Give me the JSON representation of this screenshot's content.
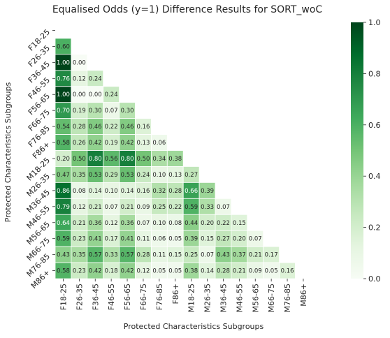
{
  "chart_data": {
    "type": "heatmap",
    "title": "Equalised Odds (y=1) Difference Results for SORT_woC",
    "xlabel": "Protected Characteristics Subgroups",
    "ylabel": "Protected Characteristics Subgroups",
    "categories": [
      "F18-25",
      "F26-35",
      "F36-45",
      "F46-55",
      "F56-65",
      "F66-75",
      "F76-85",
      "F86+",
      "M18-25",
      "M26-35",
      "M36-45",
      "M46-55",
      "M56-65",
      "M66-75",
      "M76-85",
      "M86+"
    ],
    "lower_triangle_values": [
      [
        0.6
      ],
      [
        1.0,
        0.0
      ],
      [
        0.76,
        0.12,
        0.24
      ],
      [
        1.0,
        0.0,
        0.0,
        0.24
      ],
      [
        0.7,
        0.19,
        0.3,
        0.07,
        0.3
      ],
      [
        0.54,
        0.28,
        0.46,
        0.22,
        0.46,
        0.16
      ],
      [
        0.58,
        0.26,
        0.42,
        0.19,
        0.42,
        0.13,
        0.06
      ],
      [
        0.2,
        0.5,
        0.8,
        0.56,
        0.8,
        0.5,
        0.34,
        0.38
      ],
      [
        0.47,
        0.35,
        0.53,
        0.29,
        0.53,
        0.24,
        0.1,
        0.13,
        0.27
      ],
      [
        0.86,
        0.08,
        0.14,
        0.1,
        0.14,
        0.16,
        0.32,
        0.28,
        0.66,
        0.39
      ],
      [
        0.79,
        0.12,
        0.21,
        0.07,
        0.21,
        0.09,
        0.25,
        0.22,
        0.59,
        0.33,
        0.07
      ],
      [
        0.64,
        0.21,
        0.36,
        0.12,
        0.36,
        0.07,
        0.1,
        0.08,
        0.44,
        0.2,
        0.22,
        0.15
      ],
      [
        0.59,
        0.23,
        0.41,
        0.17,
        0.41,
        0.11,
        0.06,
        0.05,
        0.39,
        0.15,
        0.27,
        0.2,
        0.07
      ],
      [
        0.43,
        0.35,
        0.57,
        0.33,
        0.57,
        0.28,
        0.11,
        0.15,
        0.25,
        0.07,
        0.43,
        0.37,
        0.21,
        0.17
      ],
      [
        0.58,
        0.23,
        0.42,
        0.18,
        0.42,
        0.12,
        0.05,
        0.05,
        0.38,
        0.14,
        0.28,
        0.21,
        0.09,
        0.05,
        0.16
      ]
    ],
    "colorbar": {
      "min": 0.0,
      "max": 1.0,
      "ticks": [
        "0.0",
        "0.2",
        "0.4",
        "0.6",
        "0.8",
        "1.0"
      ]
    },
    "colormap": {
      "name": "Greens",
      "low": "#f7fcf5",
      "high": "#00441b"
    }
  }
}
